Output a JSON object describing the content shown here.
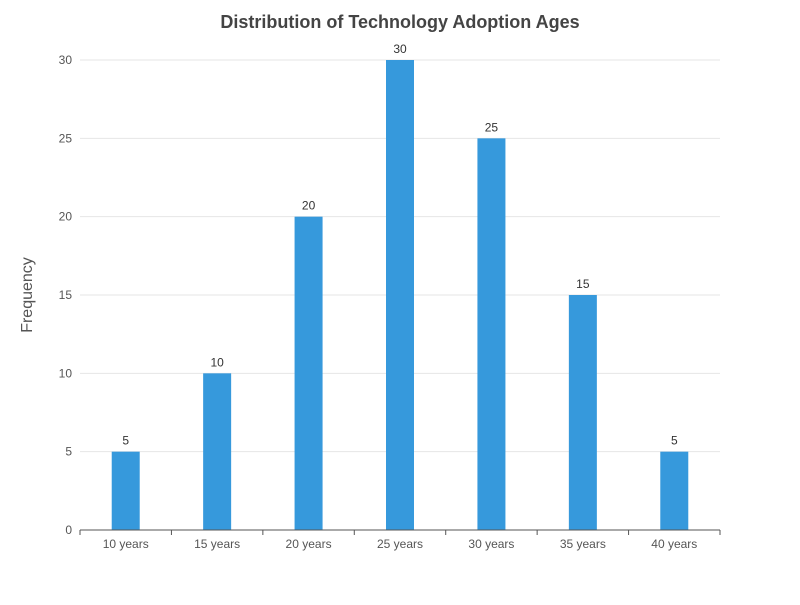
{
  "chart_data": {
    "type": "bar",
    "title": "Distribution of Technology Adoption Ages",
    "xlabel": "",
    "ylabel": "Frequency",
    "categories": [
      "10 years",
      "15 years",
      "20 years",
      "25 years",
      "30 years",
      "35 years",
      "40 years"
    ],
    "values": [
      5,
      10,
      20,
      30,
      25,
      15,
      5
    ],
    "ylim": [
      0,
      30
    ],
    "yticks": [
      0,
      5,
      10,
      15,
      20,
      25,
      30
    ],
    "grid": true,
    "data_labels": true,
    "bar_color": "#3699dc"
  }
}
